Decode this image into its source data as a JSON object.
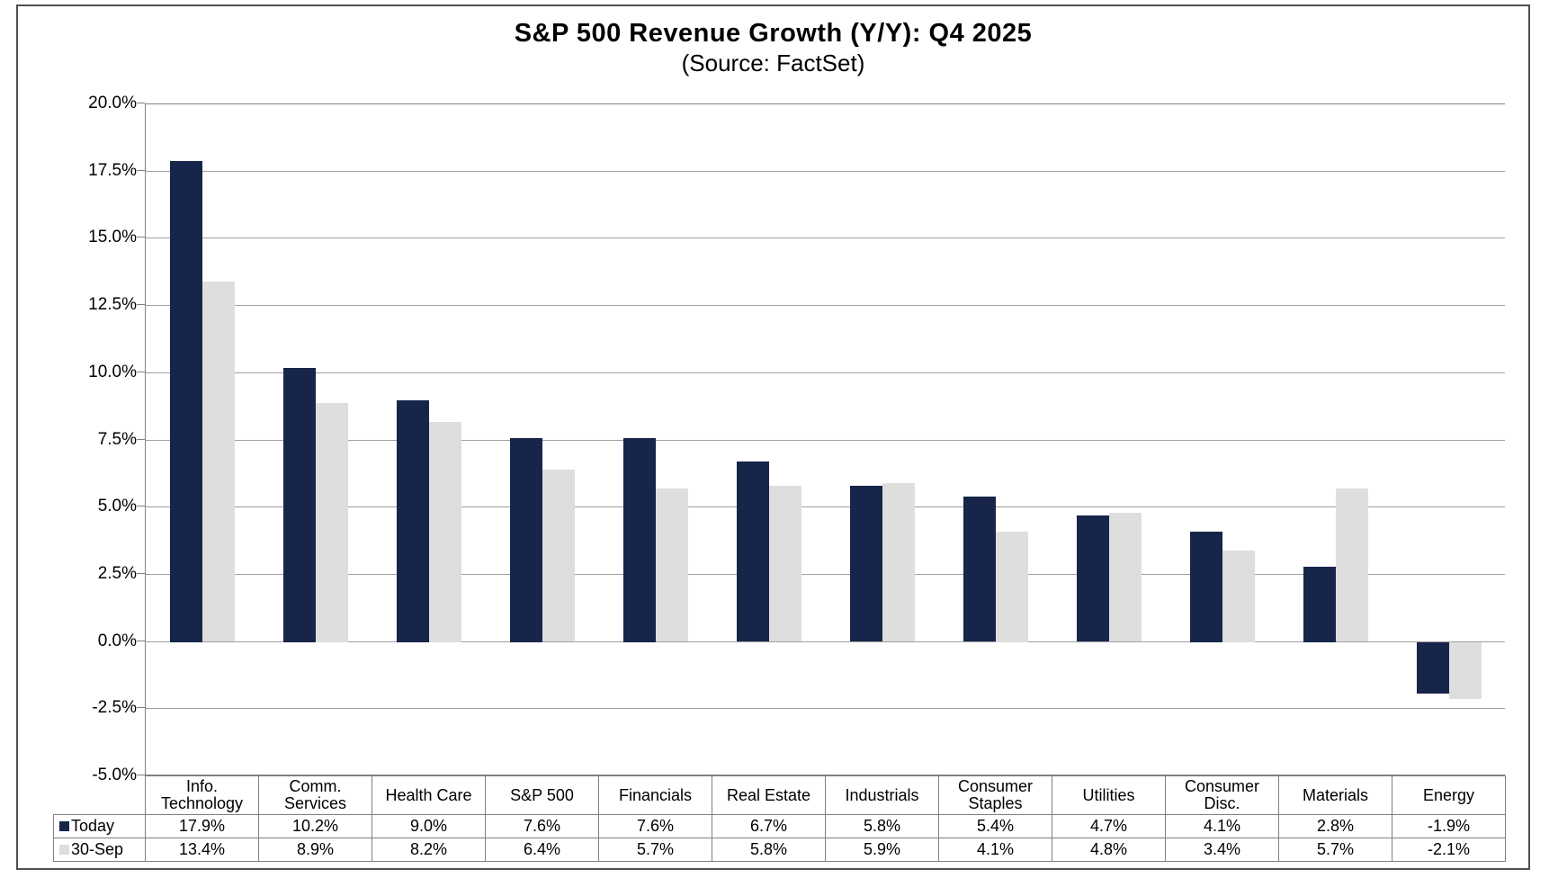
{
  "chart_data": {
    "type": "bar",
    "title": "S&P 500 Revenue Growth (Y/Y):  Q4 2025",
    "subtitle": "(Source: FactSet)",
    "categories": [
      "Info.\nTechnology",
      "Comm.\nServices",
      "Health Care",
      "S&P 500",
      "Financials",
      "Real Estate",
      "Industrials",
      "Consumer\nStaples",
      "Utilities",
      "Consumer\nDisc.",
      "Materials",
      "Energy"
    ],
    "series": [
      {
        "name": "Today",
        "color": "#17254a",
        "values": [
          17.9,
          10.2,
          9.0,
          7.6,
          7.6,
          6.7,
          5.8,
          5.4,
          4.7,
          4.1,
          2.8,
          -1.9
        ]
      },
      {
        "name": "30-Sep",
        "color": "#dedede",
        "values": [
          13.4,
          8.9,
          8.2,
          6.4,
          5.7,
          5.8,
          5.9,
          4.1,
          4.8,
          3.4,
          5.7,
          -2.1
        ]
      }
    ],
    "y_axis": {
      "min": -5.0,
      "max": 20.0,
      "step": 2.5,
      "tick_labels": [
        "20.0%",
        "17.5%",
        "15.0%",
        "12.5%",
        "10.0%",
        "7.5%",
        "5.0%",
        "2.5%",
        "0.0%",
        "-2.5%",
        "-5.0%"
      ]
    },
    "grid": true,
    "legend_position": "table-left",
    "colors": {
      "grid_line": "#a0a0a0",
      "plot_border": "#808080",
      "table_border": "#808080",
      "frame_border": "#4f4f4f"
    }
  }
}
